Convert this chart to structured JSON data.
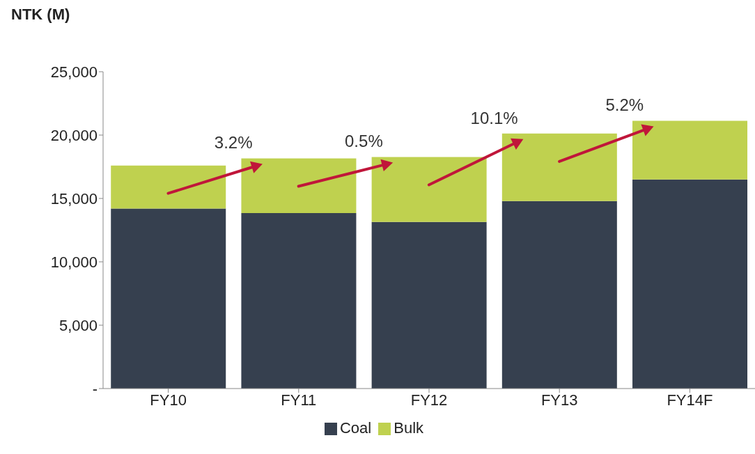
{
  "chart_data": {
    "type": "bar",
    "stacked": true,
    "ylabel": "NTK (M)",
    "categories": [
      "FY10",
      "FY11",
      "FY12",
      "FY13",
      "FY14F"
    ],
    "series": [
      {
        "name": "Coal",
        "color": "#36404f",
        "values": [
          14200,
          13850,
          13150,
          14800,
          16500
        ]
      },
      {
        "name": "Bulk",
        "color": "#bfd14f",
        "values": [
          3400,
          4310,
          5120,
          5320,
          4630
        ]
      }
    ],
    "ylim": [
      0,
      25000
    ],
    "yticks": [
      {
        "value": 0,
        "label": "-"
      },
      {
        "value": 5000,
        "label": "5,000"
      },
      {
        "value": 10000,
        "label": "10,000"
      },
      {
        "value": 15000,
        "label": "15,000"
      },
      {
        "value": 20000,
        "label": "20,000"
      },
      {
        "value": 25000,
        "label": "25,000"
      }
    ],
    "grid": false,
    "legend": "bottom",
    "annotations": [
      "3.2%",
      "0.5%",
      "10.1%",
      "5.2%"
    ]
  }
}
